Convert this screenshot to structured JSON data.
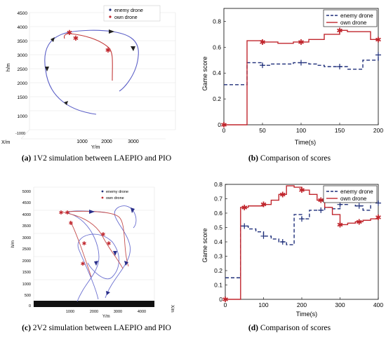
{
  "captions": [
    {
      "letter": "(a)",
      "text": "1V2 simulation between LAEPIO and PIO"
    },
    {
      "letter": "(b)",
      "text": "Comparison of scores"
    },
    {
      "letter": "(c)",
      "text": "2V2 simulation between LAEPIO and PIO"
    },
    {
      "letter": "(d)",
      "text": "Comparison of scores"
    }
  ],
  "colors": {
    "enemy": "#1f2f7a",
    "own": "#c0262d",
    "enemy_traj": "#5b5fc7",
    "own_traj": "#c33a3a"
  },
  "panel_a": {
    "legend": [
      "enemy drone",
      "own drone"
    ],
    "ylabel": "h/m",
    "xlabel": "Y/m",
    "zlabel": "X/m",
    "yticks": [
      "4500",
      "4000",
      "3500",
      "3000",
      "2500",
      "2000",
      "1500",
      "1000"
    ],
    "xticks": [
      "1000",
      "2000",
      "3000"
    ],
    "xnegtick": "-1000"
  },
  "panel_c": {
    "legend": [
      "enemy drone",
      "own drone"
    ],
    "ylabel": "h/m",
    "xlabel": "Y/m",
    "zlabel": "X/m",
    "yticks": [
      "5000",
      "4500",
      "4000",
      "3500",
      "3000",
      "2500",
      "2000",
      "1500",
      "1000",
      "500",
      "0"
    ],
    "xticks": [
      "1000",
      "2000",
      "3000",
      "4000"
    ]
  },
  "chart_data": [
    {
      "type": "line",
      "title": "",
      "xlabel": "Time(s)",
      "ylabel": "Game score",
      "xlim": [
        0,
        200
      ],
      "ylim": [
        0,
        0.9
      ],
      "xticks": [
        0,
        50,
        100,
        150,
        200
      ],
      "yticks": [
        0,
        0.2,
        0.4,
        0.6,
        0.8
      ],
      "legend_position": "top-right",
      "series": [
        {
          "name": "enemy drone",
          "style": "step-dashed",
          "marker": "+",
          "x": [
            0,
            20,
            30,
            40,
            50,
            60,
            70,
            80,
            90,
            100,
            110,
            120,
            130,
            140,
            150,
            160,
            170,
            180,
            190,
            200
          ],
          "y": [
            0.31,
            0.31,
            0.48,
            0.48,
            0.46,
            0.47,
            0.47,
            0.47,
            0.48,
            0.48,
            0.47,
            0.46,
            0.45,
            0.45,
            0.45,
            0.43,
            0.43,
            0.5,
            0.5,
            0.54
          ],
          "marker_x": [
            50,
            100,
            150,
            200
          ]
        },
        {
          "name": "own drone",
          "style": "step-solid",
          "marker": "*",
          "x": [
            0,
            20,
            30,
            40,
            50,
            60,
            70,
            80,
            90,
            100,
            110,
            120,
            130,
            140,
            150,
            160,
            170,
            180,
            190,
            200
          ],
          "y": [
            0,
            0,
            0.65,
            0.65,
            0.64,
            0.64,
            0.63,
            0.63,
            0.64,
            0.64,
            0.66,
            0.66,
            0.7,
            0.7,
            0.73,
            0.72,
            0.72,
            0.72,
            0.66,
            0.66
          ],
          "marker_x": [
            0,
            50,
            100,
            150,
            200
          ]
        }
      ]
    },
    {
      "type": "line",
      "title": "",
      "xlabel": "Time(s)",
      "ylabel": "Game score",
      "xlim": [
        0,
        400
      ],
      "ylim": [
        0,
        0.8
      ],
      "xticks": [
        0,
        100,
        200,
        300,
        400
      ],
      "yticks": [
        0,
        0.1,
        0.2,
        0.3,
        0.4,
        0.5,
        0.6,
        0.7,
        0.8
      ],
      "legend_position": "top-right",
      "series": [
        {
          "name": "enemy drone",
          "style": "step-dashed",
          "marker": "+",
          "x": [
            0,
            20,
            40,
            60,
            80,
            100,
            120,
            140,
            160,
            180,
            200,
            220,
            240,
            260,
            280,
            300,
            320,
            340,
            360,
            380,
            400
          ],
          "y": [
            0.15,
            0.15,
            0.51,
            0.49,
            0.47,
            0.44,
            0.42,
            0.4,
            0.38,
            0.59,
            0.56,
            0.62,
            0.62,
            0.64,
            0.63,
            0.66,
            0.68,
            0.65,
            0.62,
            0.69,
            0.67
          ],
          "marker_x": [
            50,
            100,
            150,
            200,
            250,
            300,
            350,
            400
          ]
        },
        {
          "name": "own drone",
          "style": "step-solid",
          "marker": "*",
          "x": [
            0,
            20,
            40,
            60,
            80,
            100,
            120,
            140,
            160,
            180,
            200,
            220,
            240,
            260,
            280,
            300,
            320,
            340,
            360,
            380,
            400
          ],
          "y": [
            0,
            0,
            0.64,
            0.65,
            0.65,
            0.66,
            0.69,
            0.73,
            0.79,
            0.78,
            0.76,
            0.73,
            0.69,
            0.64,
            0.59,
            0.52,
            0.53,
            0.54,
            0.55,
            0.56,
            0.57
          ],
          "marker_x": [
            0,
            50,
            100,
            150,
            200,
            250,
            300,
            350,
            400
          ]
        }
      ]
    }
  ]
}
